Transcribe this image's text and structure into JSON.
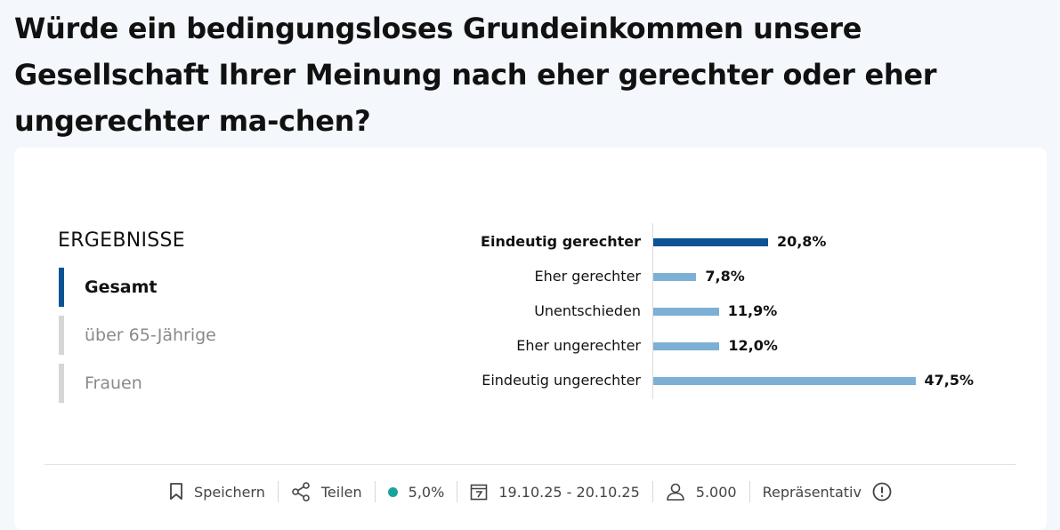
{
  "title": "Würde ein bedingungsloses Grundeinkommen unsere Gesellschaft Ihrer Meinung nach eher gerechter oder eher ungerechter ma-chen?",
  "results_heading": "ERGEBNISSE",
  "tabs": [
    {
      "label": "Gesamt",
      "active": true
    },
    {
      "label": "über 65-Jährige",
      "active": false
    },
    {
      "label": "Frauen",
      "active": false
    }
  ],
  "chart_data": {
    "type": "bar",
    "orientation": "horizontal",
    "categories": [
      "Eindeutig gerechter",
      "Eher gerechter",
      "Unentschieden",
      "Eher ungerechter",
      "Eindeutig ungerechter"
    ],
    "values": [
      20.8,
      7.8,
      11.9,
      12.0,
      47.5
    ],
    "value_labels": [
      "20,8%",
      "7,8%",
      "11,9%",
      "12,0%",
      "47,5%"
    ],
    "highlighted_index": 0,
    "colors": {
      "highlight": "#0b5394",
      "default": "#7eb0d5"
    },
    "xlim": [
      0,
      50
    ],
    "grid": false
  },
  "footer": {
    "save_label": "Speichern",
    "share_label": "Teilen",
    "margin_of_error": "5,0%",
    "date_range": "19.10.25 - 20.10.25",
    "sample_size": "5.000",
    "representative_label": "Repräsentativ"
  }
}
